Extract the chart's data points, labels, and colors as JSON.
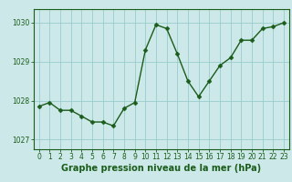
{
  "x": [
    0,
    1,
    2,
    3,
    4,
    5,
    6,
    7,
    8,
    9,
    10,
    11,
    12,
    13,
    14,
    15,
    16,
    17,
    18,
    19,
    20,
    21,
    22,
    23
  ],
  "y": [
    1027.85,
    1027.95,
    1027.75,
    1027.75,
    1027.6,
    1027.45,
    1027.45,
    1027.35,
    1027.8,
    1027.95,
    1029.3,
    1029.95,
    1029.85,
    1029.2,
    1028.5,
    1028.1,
    1028.5,
    1028.9,
    1029.1,
    1029.55,
    1029.55,
    1029.85,
    1029.9,
    1030.0
  ],
  "line_color": "#1a5c1a",
  "marker_color": "#1a5c1a",
  "bg_color": "#cce8e8",
  "grid_color": "#99cccc",
  "axis_color": "#1a5c1a",
  "xlabel": "Graphe pression niveau de la mer (hPa)",
  "xlabel_fontsize": 7,
  "yticks": [
    1027,
    1028,
    1029,
    1030
  ],
  "ylim": [
    1026.75,
    1030.35
  ],
  "xlim": [
    -0.5,
    23.5
  ],
  "xticks": [
    0,
    1,
    2,
    3,
    4,
    5,
    6,
    7,
    8,
    9,
    10,
    11,
    12,
    13,
    14,
    15,
    16,
    17,
    18,
    19,
    20,
    21,
    22,
    23
  ],
  "xtick_labels": [
    "0",
    "1",
    "2",
    "3",
    "4",
    "5",
    "6",
    "7",
    "8",
    "9",
    "10",
    "11",
    "12",
    "13",
    "14",
    "15",
    "16",
    "17",
    "18",
    "19",
    "20",
    "21",
    "22",
    "23"
  ],
  "tick_fontsize": 5.5,
  "linewidth": 1.0,
  "markersize": 2.5
}
